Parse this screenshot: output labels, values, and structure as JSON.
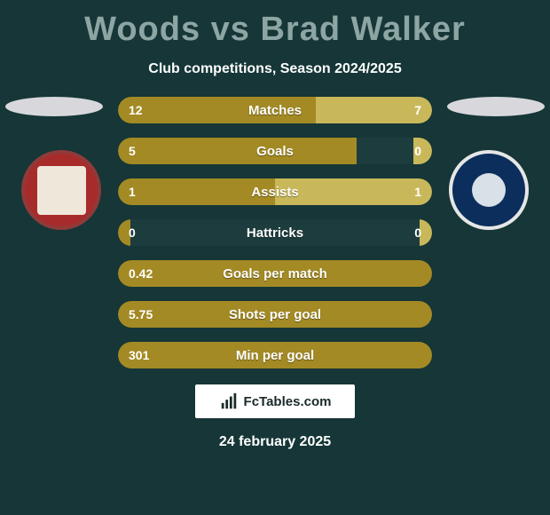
{
  "title": "Woods vs Brad Walker",
  "subtitle": "Club competitions, Season 2024/2025",
  "title_color": "#8da5a3",
  "background_color": "#163637",
  "bar_bg_color": "#1d3c3d",
  "left_bar_color": "#a38a24",
  "right_bar_color": "#c9b85a",
  "left_badge_name": "accrington-stanley",
  "right_badge_name": "tranmere-rovers",
  "stats": [
    {
      "label": "Matches",
      "left_val": "12",
      "right_val": "7",
      "left_pct": 63,
      "right_pct": 37
    },
    {
      "label": "Goals",
      "left_val": "5",
      "right_val": "0",
      "left_pct": 76,
      "right_pct": 6
    },
    {
      "label": "Assists",
      "left_val": "1",
      "right_val": "1",
      "left_pct": 50,
      "right_pct": 50
    },
    {
      "label": "Hattricks",
      "left_val": "0",
      "right_val": "0",
      "left_pct": 4,
      "right_pct": 4
    },
    {
      "label": "Goals per match",
      "left_val": "0.42",
      "right_val": "",
      "left_pct": 100,
      "right_pct": 0
    },
    {
      "label": "Shots per goal",
      "left_val": "5.75",
      "right_val": "",
      "left_pct": 100,
      "right_pct": 0
    },
    {
      "label": "Min per goal",
      "left_val": "301",
      "right_val": "",
      "left_pct": 100,
      "right_pct": 0
    }
  ],
  "logo_text": "FcTables.com",
  "date": "24 february 2025"
}
